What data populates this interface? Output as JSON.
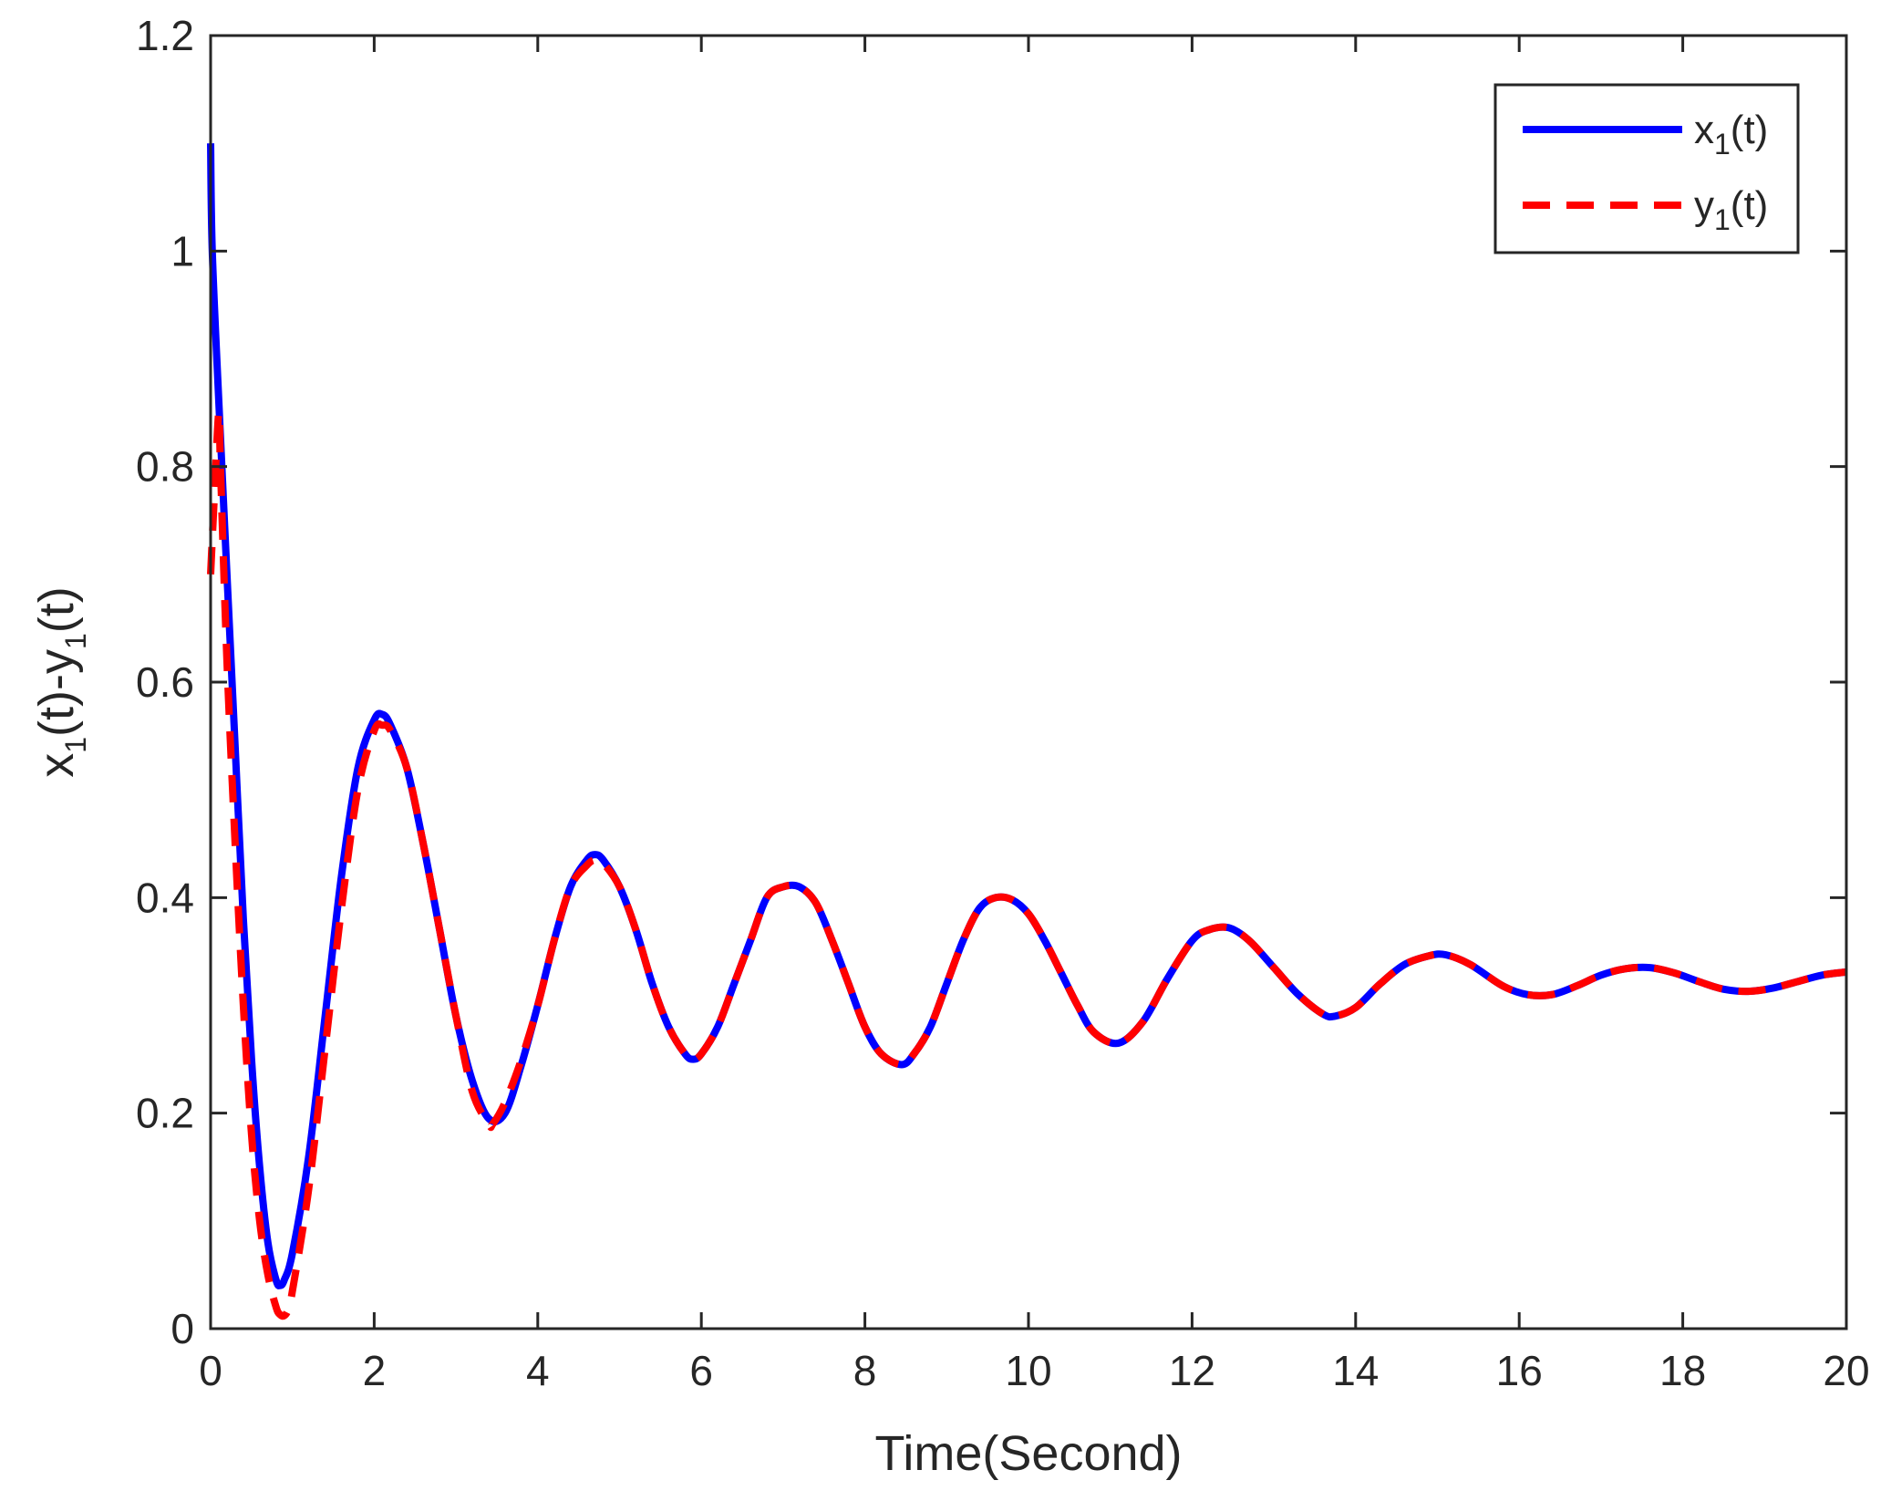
{
  "chart_data": {
    "type": "line",
    "title": "",
    "xlabel": "Time(Second)",
    "ylabel_parts": [
      "x",
      "1",
      "(t)-y",
      "1",
      "(t)"
    ],
    "xlim": [
      0,
      20
    ],
    "ylim": [
      0,
      1.2
    ],
    "xticks": [
      0,
      2,
      4,
      6,
      8,
      10,
      12,
      14,
      16,
      18,
      20
    ],
    "yticks": [
      0,
      0.2,
      0.4,
      0.6,
      0.8,
      1,
      1.2
    ],
    "xtick_labels": [
      "0",
      "2",
      "4",
      "6",
      "8",
      "10",
      "12",
      "14",
      "16",
      "18",
      "20"
    ],
    "ytick_labels": [
      "0",
      "0.2",
      "0.4",
      "0.6",
      "0.8",
      "1",
      "1.2"
    ],
    "grid": false,
    "legend_position": "top-right",
    "series": [
      {
        "name": "x1(t)",
        "legend_parts": [
          "x",
          "1",
          "(t)"
        ],
        "color": "#0000ff",
        "style": "solid",
        "x": [
          0,
          0.02,
          0.1,
          0.2,
          0.3,
          0.4,
          0.5,
          0.6,
          0.7,
          0.8,
          0.85,
          0.9,
          1.0,
          1.2,
          1.4,
          1.6,
          1.8,
          2.0,
          2.1,
          2.2,
          2.4,
          2.6,
          2.8,
          3.0,
          3.2,
          3.4,
          3.6,
          3.8,
          4.0,
          4.2,
          4.4,
          4.6,
          4.7,
          4.8,
          5.0,
          5.2,
          5.4,
          5.6,
          5.8,
          5.9,
          6.0,
          6.2,
          6.4,
          6.6,
          6.8,
          7.0,
          7.2,
          7.4,
          7.6,
          7.8,
          8.0,
          8.2,
          8.45,
          8.6,
          8.8,
          9.0,
          9.2,
          9.4,
          9.6,
          9.8,
          10.0,
          10.2,
          10.4,
          10.6,
          10.8,
          11.1,
          11.4,
          11.7,
          12.0,
          12.2,
          12.45,
          12.7,
          13.0,
          13.3,
          13.6,
          13.75,
          14.0,
          14.3,
          14.6,
          14.9,
          15.1,
          15.4,
          15.8,
          16.1,
          16.4,
          16.7,
          17.0,
          17.3,
          17.6,
          17.9,
          18.2,
          18.5,
          18.8,
          19.1,
          19.4,
          19.7,
          20.0
        ],
        "y": [
          1.1,
          1.0,
          0.86,
          0.7,
          0.54,
          0.38,
          0.25,
          0.15,
          0.08,
          0.045,
          0.04,
          0.045,
          0.07,
          0.16,
          0.29,
          0.42,
          0.52,
          0.565,
          0.57,
          0.56,
          0.52,
          0.45,
          0.37,
          0.29,
          0.23,
          0.195,
          0.2,
          0.245,
          0.3,
          0.36,
          0.41,
          0.435,
          0.44,
          0.435,
          0.41,
          0.37,
          0.32,
          0.28,
          0.255,
          0.25,
          0.255,
          0.28,
          0.32,
          0.36,
          0.4,
          0.41,
          0.41,
          0.395,
          0.36,
          0.32,
          0.28,
          0.255,
          0.245,
          0.255,
          0.28,
          0.32,
          0.36,
          0.39,
          0.4,
          0.398,
          0.385,
          0.36,
          0.33,
          0.3,
          0.275,
          0.265,
          0.285,
          0.325,
          0.36,
          0.37,
          0.372,
          0.36,
          0.335,
          0.31,
          0.292,
          0.29,
          0.298,
          0.32,
          0.338,
          0.346,
          0.347,
          0.338,
          0.318,
          0.31,
          0.31,
          0.318,
          0.328,
          0.334,
          0.335,
          0.33,
          0.322,
          0.315,
          0.313,
          0.316,
          0.322,
          0.328,
          0.331
        ]
      },
      {
        "name": "y1(t)",
        "legend_parts": [
          "y",
          "1",
          "(t)"
        ],
        "color": "#ff0000",
        "style": "dashed",
        "x": [
          0,
          0.05,
          0.1,
          0.12,
          0.2,
          0.3,
          0.4,
          0.5,
          0.6,
          0.7,
          0.8,
          0.85,
          0.9,
          0.95,
          1.0,
          1.2,
          1.4,
          1.6,
          1.8,
          2.0,
          2.1,
          2.2,
          2.4,
          2.6,
          2.8,
          3.0,
          3.2,
          3.4,
          3.45,
          3.6,
          3.8,
          4.0,
          4.2,
          4.4,
          4.6,
          4.7,
          4.8,
          5.0,
          5.2,
          5.4,
          5.6,
          5.8,
          5.9,
          6.0,
          6.2,
          6.4,
          6.6,
          6.8,
          7.0,
          7.2,
          7.4,
          7.6,
          7.8,
          8.0,
          8.2,
          8.45,
          8.6,
          8.8,
          9.0,
          9.2,
          9.4,
          9.6,
          9.8,
          10.0,
          10.2,
          10.4,
          10.6,
          10.8,
          11.1,
          11.4,
          11.7,
          12.0,
          12.2,
          12.45,
          12.7,
          13.0,
          13.3,
          13.6,
          13.75,
          14.0,
          14.3,
          14.6,
          14.9,
          15.1,
          15.4,
          15.8,
          16.1,
          16.4,
          16.7,
          17.0,
          17.3,
          17.6,
          17.9,
          18.2,
          18.5,
          18.8,
          19.1,
          19.4,
          19.7,
          20.0
        ],
        "y": [
          0.7,
          0.78,
          0.85,
          0.8,
          0.62,
          0.45,
          0.3,
          0.18,
          0.1,
          0.05,
          0.02,
          0.013,
          0.012,
          0.018,
          0.035,
          0.13,
          0.26,
          0.39,
          0.5,
          0.555,
          0.56,
          0.555,
          0.52,
          0.45,
          0.37,
          0.29,
          0.22,
          0.19,
          0.19,
          0.21,
          0.25,
          0.3,
          0.36,
          0.41,
          0.43,
          0.435,
          0.432,
          0.41,
          0.37,
          0.32,
          0.28,
          0.255,
          0.25,
          0.255,
          0.28,
          0.32,
          0.36,
          0.4,
          0.41,
          0.41,
          0.395,
          0.36,
          0.32,
          0.28,
          0.255,
          0.245,
          0.255,
          0.28,
          0.32,
          0.36,
          0.39,
          0.4,
          0.398,
          0.385,
          0.36,
          0.33,
          0.3,
          0.275,
          0.265,
          0.285,
          0.325,
          0.36,
          0.37,
          0.372,
          0.36,
          0.335,
          0.31,
          0.292,
          0.29,
          0.298,
          0.32,
          0.338,
          0.346,
          0.347,
          0.338,
          0.318,
          0.31,
          0.31,
          0.318,
          0.328,
          0.334,
          0.335,
          0.33,
          0.322,
          0.315,
          0.313,
          0.316,
          0.322,
          0.328,
          0.331
        ]
      }
    ]
  }
}
